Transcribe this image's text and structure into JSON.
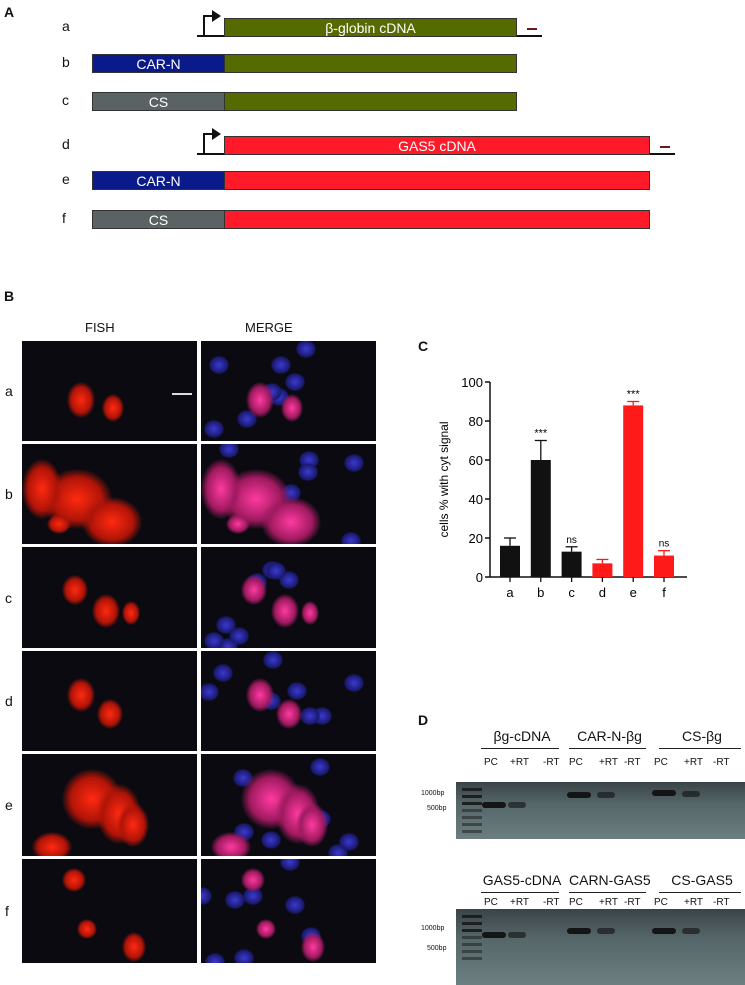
{
  "panels": {
    "a": "A",
    "b": "B",
    "c": "C",
    "d": "D"
  },
  "constructs": {
    "rows": [
      {
        "label": "a",
        "prefix": "",
        "body": "β-globin cDNA",
        "body_color": "#556b00",
        "promoter": true
      },
      {
        "label": "b",
        "prefix": "CAR-N",
        "prefix_color": "#0a1a8a",
        "body": "",
        "body_color": "#556b00",
        "promoter": false
      },
      {
        "label": "c",
        "prefix": "CS",
        "prefix_color": "#5a6264",
        "body": "",
        "body_color": "#556b00",
        "promoter": false
      },
      {
        "label": "d",
        "prefix": "",
        "body": "GAS5 cDNA",
        "body_color": "#ff1a2a",
        "promoter": true
      },
      {
        "label": "e",
        "prefix": "CAR-N",
        "prefix_color": "#0a1a8a",
        "body": "",
        "body_color": "#ff1a2a",
        "promoter": false
      },
      {
        "label": "f",
        "prefix": "CS",
        "prefix_color": "#5a6264",
        "body": "",
        "body_color": "#ff1a2a",
        "promoter": false
      }
    ],
    "probe_color": "#6b1a1a"
  },
  "fish": {
    "col_fish": "FISH",
    "col_merge": "MERGE",
    "rows": [
      "a",
      "b",
      "c",
      "d",
      "e",
      "f"
    ]
  },
  "chart_data": {
    "type": "bar",
    "categories": [
      "a",
      "b",
      "c",
      "d",
      "e",
      "f"
    ],
    "values": [
      16,
      60,
      13,
      7,
      88,
      11
    ],
    "errors": [
      4,
      10,
      2.5,
      2,
      2,
      2.5
    ],
    "colors": [
      "#111111",
      "#111111",
      "#111111",
      "#ff1a1a",
      "#ff1a1a",
      "#ff1a1a"
    ],
    "annotations": [
      "",
      "***",
      "ns",
      "",
      "***",
      "ns"
    ],
    "ylabel": "cells %  with cyt signal",
    "ylim": [
      0,
      100
    ],
    "yticks": [
      0,
      20,
      40,
      60,
      80,
      100
    ],
    "grid": false
  },
  "gels": [
    {
      "groups": [
        "βg-cDNA",
        "CAR-N-βg",
        "CS-βg"
      ],
      "lanes": [
        "PC",
        "+RT",
        "-RT",
        "PC",
        "+RT",
        "-RT",
        "PC",
        "+RT",
        "-RT"
      ],
      "markers": [
        "1000bp",
        "500bp"
      ]
    },
    {
      "groups": [
        "GAS5-cDNA",
        "CARN-GAS5",
        "CS-GAS5"
      ],
      "lanes": [
        "PC",
        "+RT",
        "-RT",
        "PC",
        "+RT",
        "-RT",
        "PC",
        "+RT",
        "-RT"
      ],
      "markers": [
        "1000bp",
        "500bp"
      ]
    }
  ]
}
